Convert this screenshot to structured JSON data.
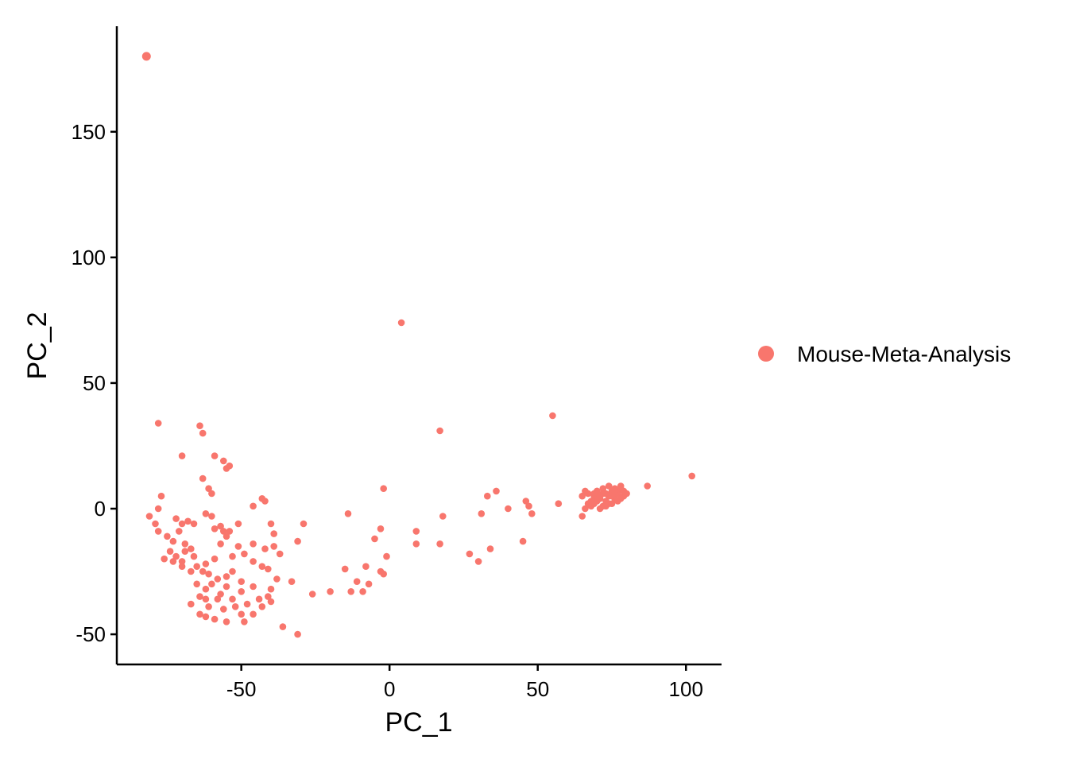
{
  "chart_data": {
    "type": "scatter",
    "xlabel": "PC_1",
    "ylabel": "PC_2",
    "xlim": [
      -92,
      112
    ],
    "ylim": [
      -62,
      192
    ],
    "xticks": [
      -50,
      0,
      50,
      100
    ],
    "yticks": [
      -50,
      0,
      50,
      100,
      150
    ],
    "grid": false,
    "legend_position": "right",
    "series": [
      {
        "name": "Mouse-Meta-Analysis",
        "color": "#F8766D",
        "points": [
          [
            -82,
            180
          ],
          [
            4,
            74
          ],
          [
            55,
            37
          ],
          [
            17,
            31
          ],
          [
            -78,
            34
          ],
          [
            -64,
            33
          ],
          [
            -63,
            30
          ],
          [
            -70,
            21
          ],
          [
            -59,
            21
          ],
          [
            -56,
            19
          ],
          [
            -55,
            16
          ],
          [
            -54,
            17
          ],
          [
            -63,
            12
          ],
          [
            -61,
            8
          ],
          [
            -60,
            6
          ],
          [
            -43,
            4
          ],
          [
            -42,
            3
          ],
          [
            -2,
            8
          ],
          [
            33,
            5
          ],
          [
            36,
            7
          ],
          [
            46,
            3
          ],
          [
            47,
            1
          ],
          [
            -77,
            5
          ],
          [
            -78,
            0
          ],
          [
            -81,
            -3
          ],
          [
            -79,
            -6
          ],
          [
            -78,
            -9
          ],
          [
            -72,
            -4
          ],
          [
            -70,
            -6
          ],
          [
            -68,
            -5
          ],
          [
            -66,
            -6
          ],
          [
            -62,
            -2
          ],
          [
            -60,
            -3
          ],
          [
            -59,
            -8
          ],
          [
            -57,
            -7
          ],
          [
            -56,
            -9
          ],
          [
            -54,
            -9
          ],
          [
            -51,
            -6
          ],
          [
            -46,
            1
          ],
          [
            -40,
            -6
          ],
          [
            -39,
            -10
          ],
          [
            -29,
            -6
          ],
          [
            -14,
            -2
          ],
          [
            -3,
            -8
          ],
          [
            9,
            -9
          ],
          [
            18,
            -3
          ],
          [
            31,
            -2
          ],
          [
            40,
            0
          ],
          [
            48,
            -2
          ],
          [
            57,
            2
          ],
          [
            -75,
            -11
          ],
          [
            -73,
            -13
          ],
          [
            -71,
            -9
          ],
          [
            -69,
            -14
          ],
          [
            -74,
            -17
          ],
          [
            -72,
            -19
          ],
          [
            -69,
            -17
          ],
          [
            -67,
            -16
          ],
          [
            -70,
            -21
          ],
          [
            -66,
            -19
          ],
          [
            -62,
            -22
          ],
          [
            -59,
            -20
          ],
          [
            -57,
            -14
          ],
          [
            -55,
            -11
          ],
          [
            -53,
            -19
          ],
          [
            -51,
            -15
          ],
          [
            -49,
            -18
          ],
          [
            -46,
            -14
          ],
          [
            -42,
            -16
          ],
          [
            -39,
            -15
          ],
          [
            -37,
            -18
          ],
          [
            -31,
            -13
          ],
          [
            -5,
            -12
          ],
          [
            -1,
            -19
          ],
          [
            9,
            -14
          ],
          [
            17,
            -14
          ],
          [
            27,
            -18
          ],
          [
            34,
            -16
          ],
          [
            45,
            -13
          ],
          [
            30,
            -21
          ],
          [
            -76,
            -20
          ],
          [
            -73,
            -21
          ],
          [
            -70,
            -23
          ],
          [
            -67,
            -25
          ],
          [
            -65,
            -23
          ],
          [
            -63,
            -25
          ],
          [
            -61,
            -26
          ],
          [
            -58,
            -28
          ],
          [
            -55,
            -27
          ],
          [
            -53,
            -25
          ],
          [
            -50,
            -29
          ],
          [
            -46,
            -21
          ],
          [
            -43,
            -23
          ],
          [
            -41,
            -24
          ],
          [
            -38,
            -28
          ],
          [
            -33,
            -29
          ],
          [
            -15,
            -24
          ],
          [
            -8,
            -23
          ],
          [
            -3,
            -25
          ],
          [
            -2,
            -26
          ],
          [
            -11,
            -29
          ],
          [
            -13,
            -33
          ],
          [
            -20,
            -33
          ],
          [
            -26,
            -34
          ],
          [
            -65,
            -30
          ],
          [
            -62,
            -32
          ],
          [
            -60,
            -30
          ],
          [
            -57,
            -34
          ],
          [
            -55,
            -31
          ],
          [
            -53,
            -36
          ],
          [
            -50,
            -33
          ],
          [
            -46,
            -31
          ],
          [
            -44,
            -36
          ],
          [
            -41,
            -35
          ],
          [
            -40,
            -32
          ],
          [
            -58,
            -36
          ],
          [
            -62,
            -36
          ],
          [
            -64,
            -35
          ],
          [
            -67,
            -38
          ],
          [
            -61,
            -39
          ],
          [
            -56,
            -40
          ],
          [
            -52,
            -39
          ],
          [
            -48,
            -38
          ],
          [
            -46,
            -42
          ],
          [
            -43,
            -39
          ],
          [
            -40,
            -37
          ],
          [
            -64,
            -42
          ],
          [
            -62,
            -43
          ],
          [
            -59,
            -44
          ],
          [
            -55,
            -45
          ],
          [
            -49,
            -45
          ],
          [
            -36,
            -47
          ],
          [
            -31,
            -50
          ],
          [
            -50,
            -42
          ],
          [
            -9,
            -33
          ],
          [
            -7,
            -30
          ],
          [
            65,
            -3
          ],
          [
            66,
            0
          ],
          [
            67,
            2
          ],
          [
            68,
            3
          ],
          [
            69,
            5
          ],
          [
            70,
            7
          ],
          [
            71,
            4
          ],
          [
            72,
            6
          ],
          [
            73,
            3
          ],
          [
            74,
            5
          ],
          [
            75,
            7
          ],
          [
            76,
            4
          ],
          [
            77,
            6
          ],
          [
            78,
            8
          ],
          [
            79,
            5
          ],
          [
            80,
            6
          ],
          [
            74,
            2
          ],
          [
            72,
            1
          ],
          [
            70,
            3
          ],
          [
            68,
            1
          ],
          [
            65,
            5
          ],
          [
            66,
            7
          ],
          [
            67,
            6
          ],
          [
            69,
            2
          ],
          [
            71,
            0
          ],
          [
            73,
            1
          ],
          [
            75,
            2
          ],
          [
            77,
            3
          ],
          [
            78,
            4
          ],
          [
            76,
            8
          ],
          [
            74,
            9
          ],
          [
            72,
            8
          ],
          [
            70,
            7
          ],
          [
            73,
            6
          ],
          [
            75,
            5
          ],
          [
            71,
            5
          ],
          [
            69,
            6
          ],
          [
            76,
            7
          ],
          [
            78,
            9
          ],
          [
            79,
            7
          ],
          [
            87,
            9
          ],
          [
            102,
            13
          ]
        ]
      }
    ]
  }
}
